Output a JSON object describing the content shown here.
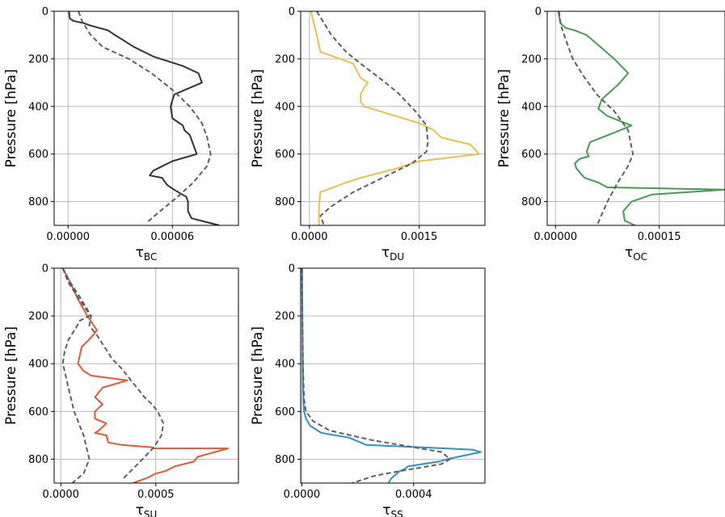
{
  "chart_data": [
    {
      "type": "line",
      "xlabel": "τ",
      "xlabel_sub": "BC",
      "ylabel": "Pressure [hPa]",
      "ylim": [
        900,
        0
      ],
      "xlim": [
        -8e-06,
        9.8e-05
      ],
      "xticks": [
        {
          "value": 0,
          "label": "0.00000"
        },
        {
          "value": 6e-05,
          "label": "0.00006"
        }
      ],
      "yticks": [
        {
          "value": 0,
          "label": "0"
        },
        {
          "value": 200,
          "label": "200"
        },
        {
          "value": 400,
          "label": "400"
        },
        {
          "value": 600,
          "label": "600"
        },
        {
          "value": 800,
          "label": "800"
        }
      ],
      "grid": true,
      "series": [
        {
          "style": "solid",
          "color": "#333333",
          "x": [
            5e-07,
            1e-06,
            3e-06,
            9e-06,
            1.3e-05,
            2.3e-05,
            2.7e-05,
            3.8e-05,
            4.9e-05,
            6.6e-05,
            7.5e-05,
            7.7e-05,
            6.1e-05,
            5.9e-05,
            6e-05,
            6.6e-05,
            6.7e-05,
            7e-05,
            7.2e-05,
            7.4e-05,
            6e-05,
            4.9e-05,
            4.7e-05,
            5.4e-05,
            5.7e-05,
            6.1e-05,
            6.8e-05,
            6.9e-05,
            6.9e-05,
            7.1e-05,
            8.7e-05
          ],
          "y": [
            0,
            30,
            40,
            50,
            60,
            80,
            100,
            150,
            190,
            230,
            260,
            300,
            350,
            400,
            450,
            480,
            500,
            520,
            560,
            600,
            630,
            670,
            690,
            700,
            730,
            750,
            780,
            800,
            840,
            870,
            900
          ]
        },
        {
          "style": "dashed",
          "color": "#5f5f5f",
          "x": [
            6e-06,
            8e-06,
            1.3e-05,
            2e-05,
            3.5e-05,
            4.8e-05,
            6e-05,
            7e-05,
            7.7e-05,
            8e-05,
            8.2e-05,
            8e-05,
            7.2e-05,
            6.3e-05,
            5.3e-05,
            4.5e-05
          ],
          "y": [
            0,
            40,
            100,
            150,
            200,
            260,
            330,
            400,
            470,
            530,
            600,
            650,
            720,
            780,
            840,
            890
          ]
        }
      ]
    },
    {
      "type": "line",
      "xlabel": "τ",
      "xlabel_sub": "DU",
      "ylabel": "Pressure [hPa]",
      "ylim": [
        900,
        0
      ],
      "xlim": [
        -0.00012,
        0.0024
      ],
      "xticks": [
        {
          "value": 0,
          "label": "0.0000"
        },
        {
          "value": 0.0015,
          "label": "0.0015"
        }
      ],
      "yticks": [
        {
          "value": 0,
          "label": "0"
        },
        {
          "value": 200,
          "label": "200"
        },
        {
          "value": 400,
          "label": "400"
        },
        {
          "value": 600,
          "label": "600"
        },
        {
          "value": 800,
          "label": "800"
        }
      ],
      "grid": true,
      "series": [
        {
          "style": "solid",
          "color": "#e8c04a",
          "x": [
            2e-05,
            0.0001,
            0.00015,
            0.0006,
            0.0007,
            0.0008,
            0.00075,
            0.0007,
            0.0007,
            0.00075,
            0.0015,
            0.0017,
            0.0018,
            0.0022,
            0.00232,
            0.0015,
            0.0012,
            0.0007,
            0.0005,
            0.00015,
            0.00013,
            0.00013
          ],
          "y": [
            0,
            100,
            170,
            220,
            280,
            300,
            320,
            350,
            380,
            400,
            470,
            500,
            530,
            560,
            600,
            630,
            660,
            700,
            720,
            760,
            820,
            900
          ]
        },
        {
          "style": "dashed",
          "color": "#5f5f5f",
          "x": [
            0.0001,
            0.0002,
            0.0003,
            0.0005,
            0.0007,
            0.001,
            0.0012,
            0.00145,
            0.0016,
            0.00162,
            0.0016,
            0.0014,
            0.001,
            0.0006,
            0.0003,
            0.00015,
            0.0002
          ],
          "y": [
            0,
            50,
            100,
            170,
            220,
            290,
            340,
            420,
            480,
            550,
            590,
            640,
            700,
            760,
            820,
            860,
            900
          ]
        }
      ]
    },
    {
      "type": "line",
      "xlabel": "τ",
      "xlabel_sub": "OC",
      "ylabel": "Pressure [hPa]",
      "ylim": [
        900,
        0
      ],
      "xlim": [
        -1.2e-05,
        0.000245
      ],
      "xticks": [
        {
          "value": 0,
          "label": "0.00000"
        },
        {
          "value": 0.00015,
          "label": "0.00015"
        }
      ],
      "yticks": [
        {
          "value": 0,
          "label": "0"
        },
        {
          "value": 200,
          "label": "200"
        },
        {
          "value": 400,
          "label": "400"
        },
        {
          "value": 600,
          "label": "600"
        },
        {
          "value": 800,
          "label": "800"
        }
      ],
      "grid": true,
      "series": [
        {
          "style": "solid",
          "color": "#4a9a55",
          "x": [
            4e-06,
            7e-06,
            1.5e-05,
            2.8e-05,
            4.5e-05,
            8.5e-05,
            0.000105,
            9e-05,
            6.7e-05,
            6.2e-05,
            7.5e-05,
            9.2e-05,
            0.00011,
            8.5e-05,
            5e-05,
            4.5e-05,
            4.8e-05,
            3.5e-05,
            2.8e-05,
            3e-05,
            4.2e-05,
            6.2e-05,
            7.5e-05,
            0.000245,
            0.00014,
            0.00011,
            9.8e-05,
            0.0001,
            0.000115
          ],
          "y": [
            0,
            50,
            70,
            80,
            100,
            200,
            260,
            310,
            370,
            410,
            440,
            460,
            480,
            510,
            550,
            590,
            610,
            620,
            640,
            660,
            700,
            720,
            740,
            750,
            770,
            800,
            840,
            880,
            900
          ]
        },
        {
          "style": "dashed",
          "color": "#5f5f5f",
          "x": [
            5e-06,
            8e-06,
            1.5e-05,
            2.5e-05,
            4e-05,
            6e-05,
            8.5e-05,
            0.000105,
            0.000112,
            0.000105,
            9e-05,
            7.5e-05,
            6e-05
          ],
          "y": [
            0,
            60,
            120,
            200,
            270,
            350,
            420,
            500,
            600,
            650,
            720,
            800,
            900
          ]
        }
      ]
    },
    {
      "type": "line",
      "xlabel": "τ",
      "xlabel_sub": "SU",
      "ylabel": "Pressure [hPa]",
      "ylim": [
        900,
        0
      ],
      "xlim": [
        -3.5e-05,
        0.000935
      ],
      "xticks": [
        {
          "value": 0,
          "label": "0.0000"
        },
        {
          "value": 0.0005,
          "label": "0.0005"
        }
      ],
      "yticks": [
        {
          "value": 0,
          "label": "0"
        },
        {
          "value": 200,
          "label": "200"
        },
        {
          "value": 400,
          "label": "400"
        },
        {
          "value": 600,
          "label": "600"
        },
        {
          "value": 800,
          "label": "800"
        }
      ],
      "grid": true,
      "series": [
        {
          "style": "solid",
          "color": "#e05a36",
          "x": [
            1e-05,
            5e-05,
            9e-05,
            0.00014,
            0.00019,
            0.00016,
            0.00011,
            9e-05,
            0.00012,
            0.00016,
            0.00035,
            0.00022,
            0.00018,
            0.00022,
            0.00018,
            0.00018,
            0.00024,
            0.0002,
            0.00018,
            0.00024,
            0.00025,
            0.00032,
            0.00048,
            0.00049,
            0.00088,
            0.00072,
            0.0007,
            0.0006,
            0.00055,
            0.0005,
            0.00045,
            0.00038
          ],
          "y": [
            0,
            60,
            130,
            200,
            260,
            290,
            330,
            400,
            430,
            450,
            470,
            500,
            540,
            570,
            600,
            630,
            650,
            680,
            690,
            700,
            730,
            740,
            750,
            755,
            755,
            790,
            810,
            830,
            850,
            860,
            880,
            900
          ]
        },
        {
          "style": "dashed",
          "color": "#5f5f5f",
          "x": [
            1e-05,
            4e-05,
            8e-05,
            0.00014,
            0.00015,
            0.0001,
            8e-05,
            4e-05,
            2e-05,
            1e-05,
            2e-05,
            4e-05,
            7e-05,
            0.00012,
            0.00015,
            0.00012,
            6e-05
          ],
          "y": [
            0,
            60,
            110,
            180,
            200,
            220,
            250,
            300,
            350,
            400,
            430,
            500,
            600,
            700,
            800,
            860,
            900
          ]
        },
        {
          "style": "dashed",
          "color": "#5f5f5f",
          "x": [
            1e-05,
            5e-05,
            0.0001,
            0.00016,
            0.00015,
            0.00019,
            0.00023,
            0.00027,
            0.00032,
            0.00036,
            0.0004,
            0.00044,
            0.00048,
            0.00051,
            0.00054,
            0.00053,
            0.00049,
            0.00043,
            0.00038,
            0.00033
          ],
          "y": [
            0,
            60,
            120,
            200,
            240,
            280,
            330,
            380,
            420,
            460,
            500,
            540,
            570,
            600,
            650,
            700,
            750,
            800,
            840,
            880
          ]
        }
      ]
    },
    {
      "type": "line",
      "xlabel": "τ",
      "xlabel_sub": "SS",
      "ylabel": "Pressure [hPa]",
      "ylim": [
        900,
        0
      ],
      "xlim": [
        -4e-06,
        0.000655
      ],
      "xticks": [
        {
          "value": 0,
          "label": "0.0000"
        },
        {
          "value": 0.0004,
          "label": "0.0004"
        }
      ],
      "yticks": [
        {
          "value": 0,
          "label": "0"
        },
        {
          "value": 200,
          "label": "200"
        },
        {
          "value": 400,
          "label": "400"
        },
        {
          "value": 600,
          "label": "600"
        },
        {
          "value": 800,
          "label": "800"
        }
      ],
      "grid": true,
      "series": [
        {
          "style": "solid",
          "color": "#3090c7",
          "x": [
            1e-06,
            2e-06,
            4e-06,
            5e-06,
            6e-06,
            8e-06,
            1.5e-05,
            3e-05,
            7e-05,
            0.00017,
            0.00023,
            0.00061,
            0.00064,
            0.00052,
            0.00049,
            0.00038,
            0.00037,
            0.00035,
            0.00034,
            0.00032,
            0.00031
          ],
          "y": [
            0,
            200,
            400,
            500,
            560,
            600,
            630,
            660,
            690,
            710,
            740,
            760,
            770,
            800,
            810,
            830,
            840,
            850,
            860,
            880,
            900
          ]
        },
        {
          "style": "dashed",
          "color": "#5f5f5f",
          "x": [
            1e-06,
            2e-06,
            4e-06,
            8e-06,
            1.5e-05,
            4e-05,
            0.0001,
            0.00025,
            0.0004,
            0.0005,
            0.00053,
            0.0005,
            0.00035,
            0.00026,
            0.00018
          ],
          "y": [
            0,
            200,
            400,
            550,
            600,
            640,
            680,
            720,
            750,
            770,
            800,
            820,
            850,
            870,
            900
          ]
        }
      ]
    }
  ]
}
